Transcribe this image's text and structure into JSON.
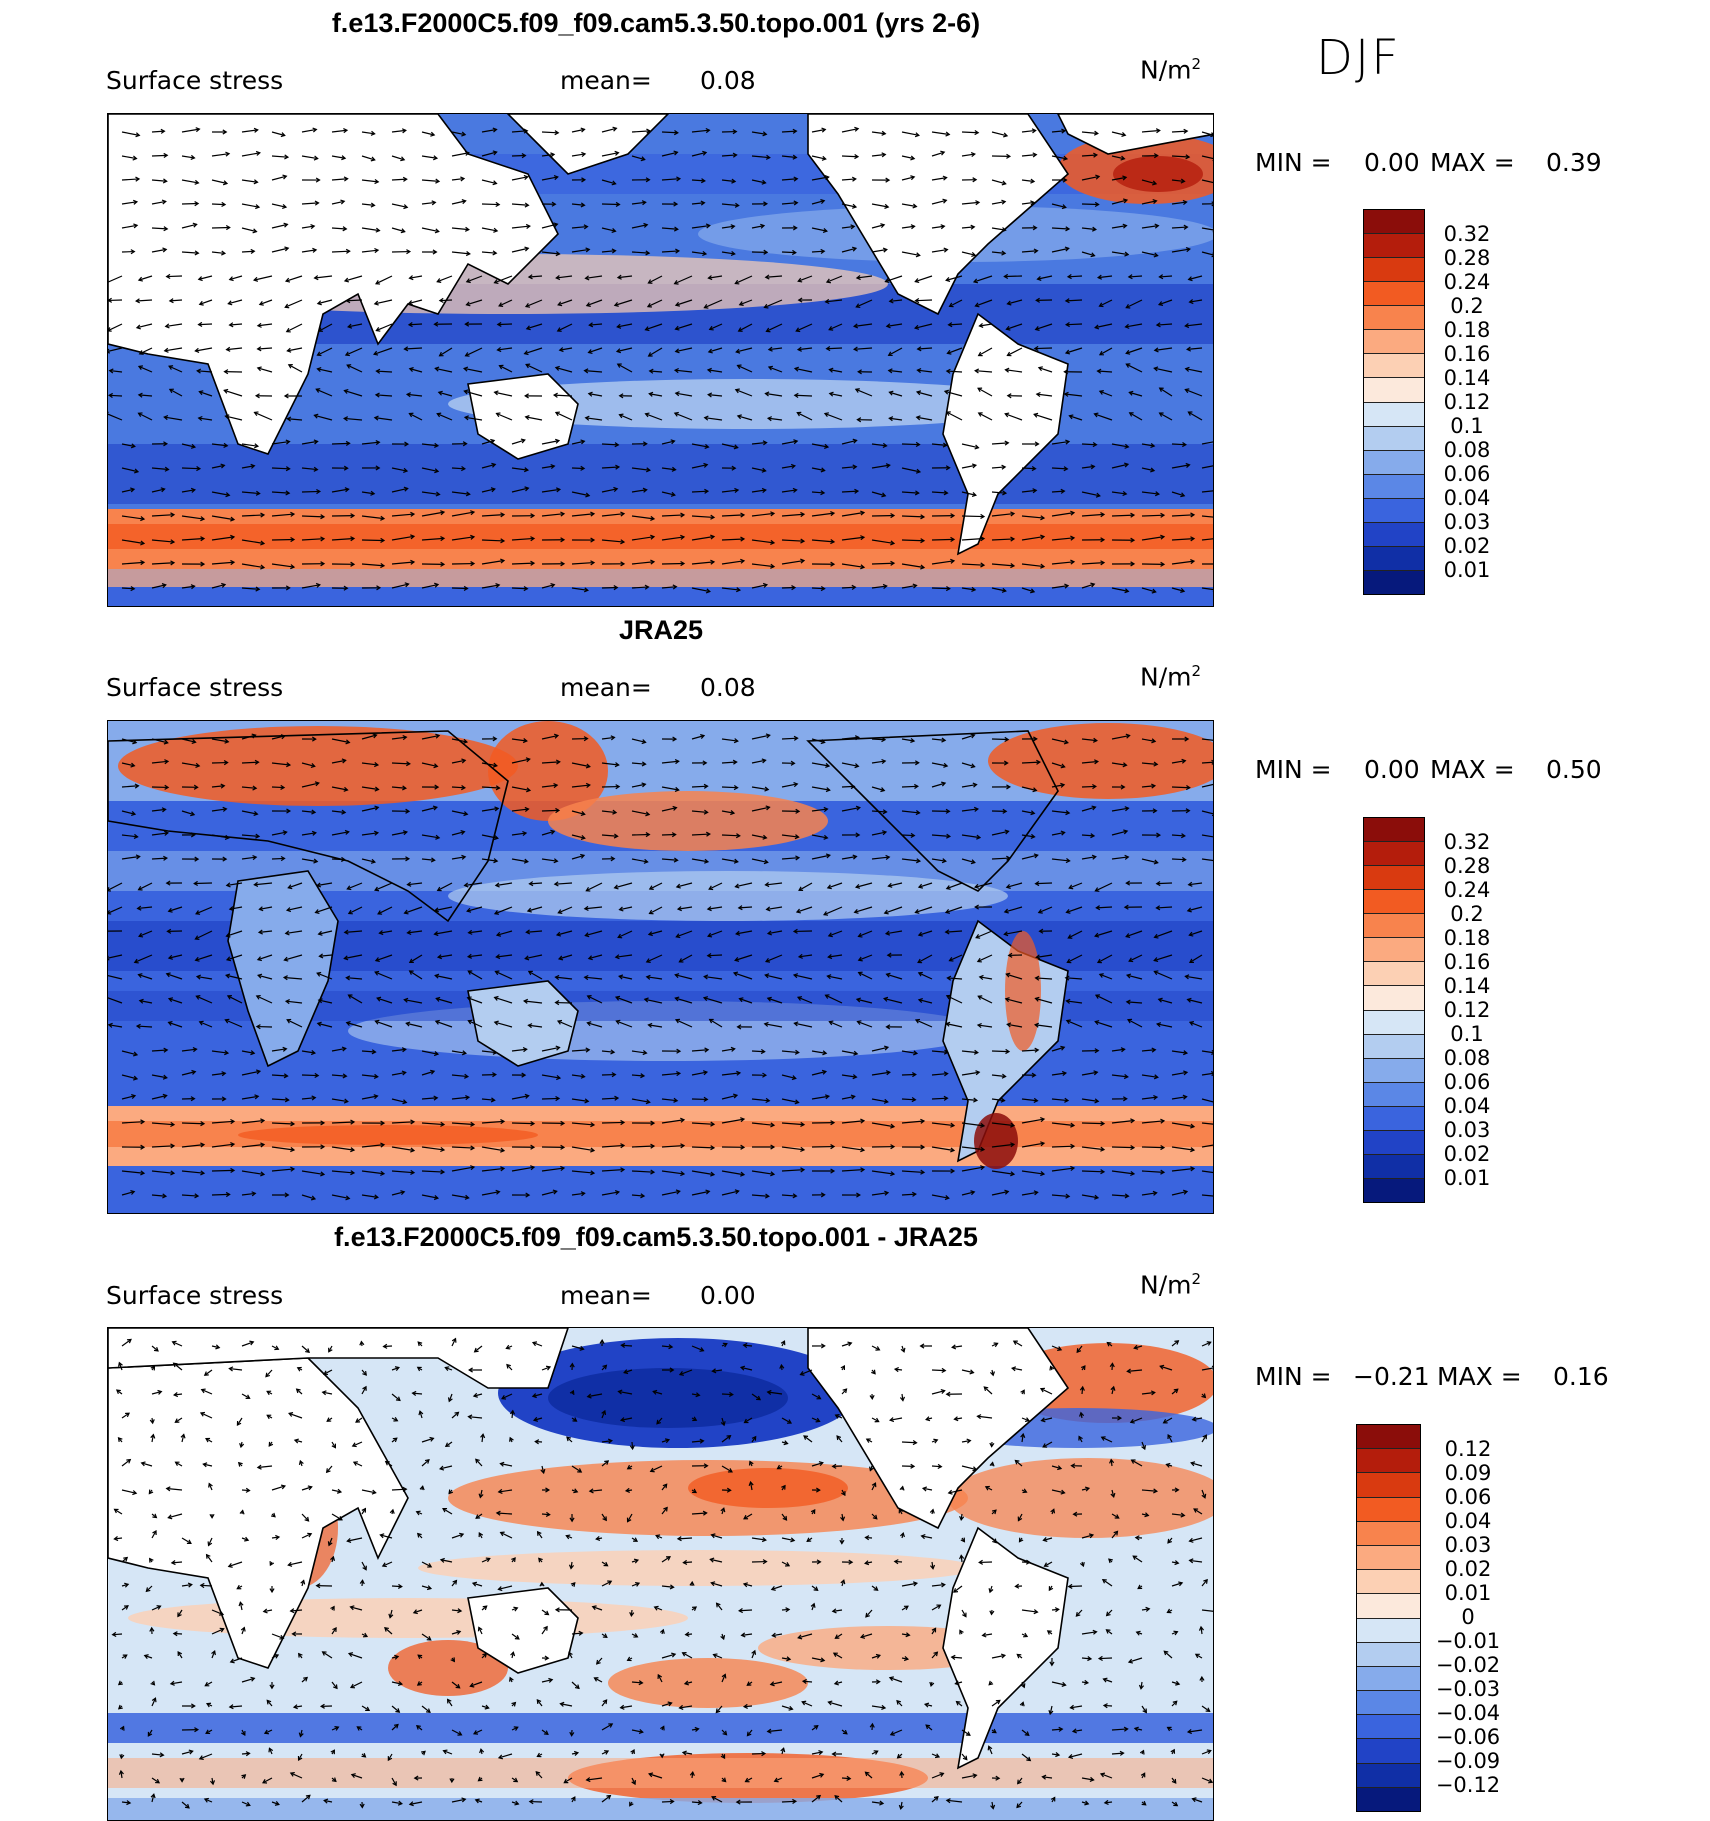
{
  "season": "DJF",
  "panels": [
    {
      "title": "f.e13.F2000C5.f09_f09.cam5.3.50.topo.001 (yrs 2-6)",
      "field": "Surface stress",
      "mean_label": "mean=",
      "mean_value": "0.08",
      "unit_base": "N/m",
      "unit_exp": "2",
      "min_label": "MIN =",
      "min_value": "0.00",
      "max_label": "MAX =",
      "max_value": "0.39",
      "levels": [
        "0.32",
        "0.28",
        "0.24",
        "0.2",
        "0.18",
        "0.16",
        "0.14",
        "0.12",
        "0.1",
        "0.08",
        "0.06",
        "0.04",
        "0.03",
        "0.02",
        "0.01"
      ],
      "colors": [
        "#8b0d0a",
        "#b41d0c",
        "#d93a10",
        "#f25b22",
        "#f8834d",
        "#fbaa80",
        "#fcd0b4",
        "#fce9dc",
        "#d6e6f6",
        "#b3cdf0",
        "#86abeb",
        "#5b87e6",
        "#3a64de",
        "#2143c6",
        "#102fa6",
        "#06197c"
      ]
    },
    {
      "title": "JRA25",
      "field": "Surface stress",
      "mean_label": "mean=",
      "mean_value": "0.08",
      "unit_base": "N/m",
      "unit_exp": "2",
      "min_label": "MIN =",
      "min_value": "0.00",
      "max_label": "MAX =",
      "max_value": "0.50",
      "levels": [
        "0.32",
        "0.28",
        "0.24",
        "0.2",
        "0.18",
        "0.16",
        "0.14",
        "0.12",
        "0.1",
        "0.08",
        "0.06",
        "0.04",
        "0.03",
        "0.02",
        "0.01"
      ],
      "colors": [
        "#8b0d0a",
        "#b41d0c",
        "#d93a10",
        "#f25b22",
        "#f8834d",
        "#fbaa80",
        "#fcd0b4",
        "#fce9dc",
        "#d6e6f6",
        "#b3cdf0",
        "#86abeb",
        "#5b87e6",
        "#3a64de",
        "#2143c6",
        "#102fa6",
        "#06197c"
      ]
    },
    {
      "title": "f.e13.F2000C5.f09_f09.cam5.3.50.topo.001 - JRA25",
      "field": "Surface stress",
      "mean_label": "mean=",
      "mean_value": "0.00",
      "unit_base": "N/m",
      "unit_exp": "2",
      "min_label": "MIN =",
      "min_value": "−0.21",
      "max_label": "MAX =",
      "max_value": "0.16",
      "levels": [
        "0.12",
        "0.09",
        "0.06",
        "0.04",
        "0.03",
        "0.02",
        "0.01",
        "0",
        "−0.01",
        "−0.02",
        "−0.03",
        "−0.04",
        "−0.06",
        "−0.09",
        "−0.12"
      ],
      "colors": [
        "#8b0d0a",
        "#b41d0c",
        "#d93a10",
        "#f25b22",
        "#f8834d",
        "#fbaa80",
        "#fcd0b4",
        "#fce9dc",
        "#d6e6f6",
        "#b3cdf0",
        "#86abeb",
        "#5b87e6",
        "#3a64de",
        "#2143c6",
        "#102fa6",
        "#06197c"
      ]
    }
  ]
}
